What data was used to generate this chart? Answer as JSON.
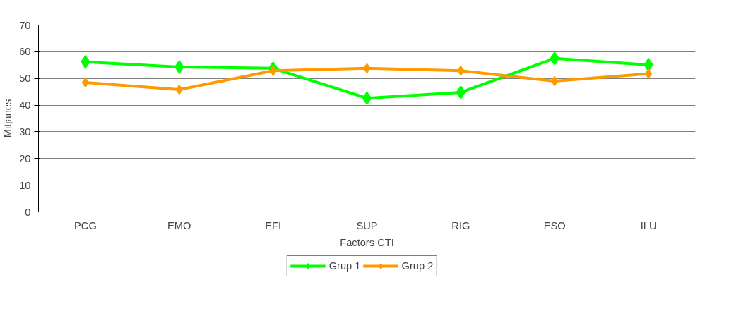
{
  "chart_data": {
    "type": "line",
    "xlabel": "Factors CTI",
    "ylabel": "Mitjanes",
    "categories": [
      "PCG",
      "EMO",
      "EFI",
      "SUP",
      "RIG",
      "ESO",
      "ILU"
    ],
    "series": [
      {
        "name": "Grup 1",
        "color": "#00ff00",
        "values": [
          56.2,
          54.3,
          53.8,
          42.6,
          44.8,
          57.5,
          55.1
        ]
      },
      {
        "name": "Grup 2",
        "color": "#ff9900",
        "values": [
          48.5,
          45.8,
          52.9,
          53.8,
          52.9,
          49.0,
          51.8
        ]
      }
    ],
    "ylim": [
      0,
      70
    ],
    "yticks": [
      0,
      10,
      20,
      30,
      40,
      50,
      60,
      70
    ],
    "grid": "y",
    "legend": "bottom",
    "marker": "diamond",
    "line_style": "solid"
  }
}
